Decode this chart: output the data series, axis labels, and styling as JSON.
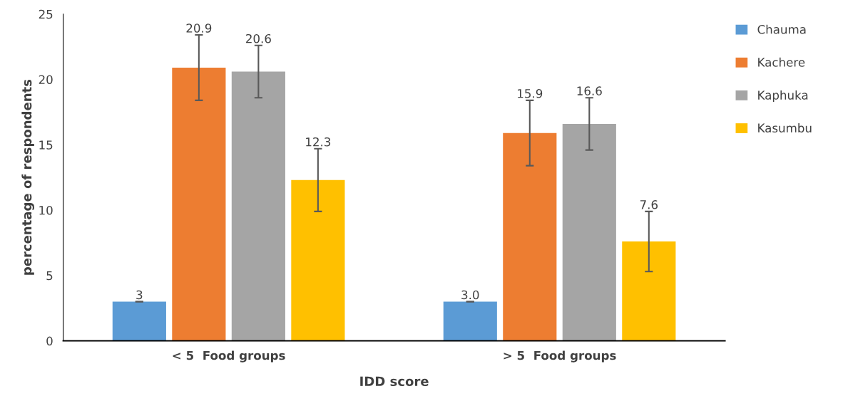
{
  "chart_data": {
    "type": "bar",
    "xlabel": "IDD score",
    "ylabel": "percentage of respondents",
    "categories": [
      "< 5  Food groups",
      "> 5  Food groups"
    ],
    "series": [
      {
        "name": "Chauma",
        "color": "#5b9bd5",
        "values": [
          3,
          3.0
        ],
        "errors": [
          0,
          0
        ],
        "value_labels": [
          "3",
          "3.0"
        ]
      },
      {
        "name": "Kachere",
        "color": "#ed7d31",
        "values": [
          20.9,
          15.9
        ],
        "errors": [
          2.5,
          2.5
        ],
        "value_labels": [
          "20.9",
          "15.9"
        ]
      },
      {
        "name": "Kaphuka",
        "color": "#a5a5a5",
        "values": [
          20.6,
          16.6
        ],
        "errors": [
          2.0,
          2.0
        ],
        "value_labels": [
          "20.6",
          "16.6"
        ]
      },
      {
        "name": "Kasumbu",
        "color": "#ffc000",
        "values": [
          12.3,
          7.6
        ],
        "errors": [
          2.4,
          2.3
        ],
        "value_labels": [
          "12.3",
          "7.6"
        ]
      }
    ],
    "ylim": [
      0,
      25
    ],
    "yticks": [
      0,
      5,
      10,
      15,
      20,
      25
    ],
    "grid": false,
    "legend": "right"
  }
}
